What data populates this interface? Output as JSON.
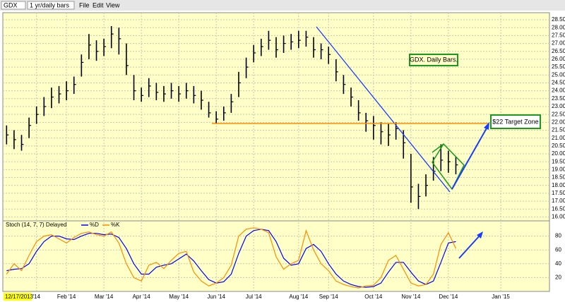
{
  "toolbar": {
    "symbol": "GDX",
    "period": "1 yr/daily bars",
    "menus": [
      "File",
      "Edit",
      "View"
    ]
  },
  "chart_data": [
    {
      "type": "hlc",
      "color": "#000000",
      "grid": true,
      "annotations": [
        "GDX. Daily Bars.",
        "$22 Target Zone"
      ],
      "ylim": [
        15.75,
        28.95
      ],
      "yticks": [
        {
          "value": 16,
          "label": "16.00"
        },
        {
          "value": 16.5,
          "label": "16.50"
        },
        {
          "value": 17,
          "label": "17.00"
        },
        {
          "value": 17.5,
          "label": "17.50"
        },
        {
          "value": 18,
          "label": "18.00"
        },
        {
          "value": 18.5,
          "label": "18.50"
        },
        {
          "value": 19,
          "label": "19.00"
        },
        {
          "value": 19.5,
          "label": "19.50"
        },
        {
          "value": 20,
          "label": "20.00"
        },
        {
          "value": 20.5,
          "label": "20.50"
        },
        {
          "value": 21,
          "label": "21.00"
        },
        {
          "value": 21.5,
          "label": "21.50"
        },
        {
          "value": 22,
          "label": "22.00"
        },
        {
          "value": 22.5,
          "label": "22.50"
        },
        {
          "value": 23,
          "label": "23.00"
        },
        {
          "value": 23.5,
          "label": "23.50"
        },
        {
          "value": 24,
          "label": "24.00"
        },
        {
          "value": 24.5,
          "label": "24.50"
        },
        {
          "value": 25,
          "label": "25.00"
        },
        {
          "value": 25.5,
          "label": "25.50"
        },
        {
          "value": 26,
          "label": "26.00"
        },
        {
          "value": 26.5,
          "label": "26.50"
        },
        {
          "value": 27,
          "label": "27.00"
        },
        {
          "value": 27.5,
          "label": "27.50"
        },
        {
          "value": 28,
          "label": "28.00"
        },
        {
          "value": 28.5,
          "label": "28.50"
        }
      ],
      "high": [
        21.8,
        21.5,
        21.2,
        22.3,
        23.0,
        23.6,
        24.2,
        24.3,
        24.6,
        24.9,
        26.3,
        27.6,
        27.2,
        27.3,
        28.1,
        28.0,
        27.0,
        25.0,
        24.2,
        24.8,
        24.5,
        24.3,
        24.5,
        24.3,
        24.5,
        24.3,
        24.0,
        23.3,
        22.7,
        23.0,
        23.8,
        25.2,
        26.1,
        26.9,
        27.3,
        27.8,
        27.4,
        27.5,
        27.6,
        27.8,
        27.8,
        27.4,
        27.0,
        26.8,
        26.0,
        25.0,
        24.2,
        23.4,
        22.6,
        22.4,
        22.0,
        21.9,
        22.0,
        21.5,
        20.0,
        18.1,
        18.7,
        19.8,
        20.6,
        20.2,
        19.8,
        null,
        null,
        null,
        null,
        null,
        null,
        null,
        null,
        null,
        null,
        null,
        null
      ],
      "low": [
        20.6,
        20.3,
        20.2,
        21.0,
        21.9,
        22.4,
        22.9,
        23.2,
        23.4,
        23.8,
        24.9,
        26.0,
        25.9,
        26.2,
        26.7,
        26.3,
        25.0,
        23.4,
        23.3,
        23.6,
        23.4,
        23.3,
        23.5,
        23.3,
        23.5,
        23.2,
        22.8,
        22.3,
        21.9,
        22.1,
        22.6,
        23.6,
        24.8,
        25.8,
        26.2,
        26.6,
        26.1,
        26.4,
        26.6,
        26.7,
        26.8,
        26.1,
        26.0,
        25.7,
        24.6,
        23.8,
        23.0,
        22.1,
        21.4,
        20.9,
        20.6,
        20.5,
        20.9,
        19.7,
        16.9,
        16.5,
        17.3,
        18.3,
        18.9,
        18.8,
        18.7,
        null,
        null,
        null,
        null,
        null,
        null,
        null,
        null,
        null,
        null,
        null,
        null
      ],
      "close": [
        21.2,
        20.9,
        20.6,
        21.8,
        22.5,
        23.0,
        23.6,
        23.8,
        24.0,
        24.4,
        25.8,
        26.9,
        26.5,
        26.8,
        27.6,
        27.3,
        25.6,
        24.0,
        23.7,
        24.3,
        23.9,
        23.8,
        24.0,
        23.8,
        24.0,
        23.7,
        23.4,
        22.6,
        22.2,
        22.6,
        23.3,
        24.5,
        25.5,
        26.4,
        26.8,
        27.2,
        26.6,
        27.0,
        27.1,
        27.2,
        27.4,
        26.6,
        26.6,
        26.3,
        25.2,
        24.4,
        23.6,
        22.6,
        22.1,
        21.8,
        21.4,
        21.2,
        21.6,
        20.7,
        17.9,
        17.3,
        18.0,
        18.9,
        19.6,
        19.5,
        19.3,
        null,
        null,
        null,
        null,
        null,
        null,
        null,
        null,
        null,
        null,
        null,
        null
      ]
    },
    {
      "type": "line",
      "title": "Stoch (14, 7, 7) Delayed",
      "grid": true,
      "ylim": [
        0,
        100
      ],
      "yticks": [
        20,
        40,
        60,
        80
      ],
      "cursor_index": 1,
      "categories": [
        null,
        "12/17/2013",
        null,
        null,
        "'14",
        null,
        null,
        null,
        "Feb '14",
        null,
        null,
        null,
        null,
        "Mar '14",
        null,
        null,
        null,
        null,
        "Apr '14",
        null,
        null,
        null,
        null,
        "May '14",
        null,
        null,
        null,
        null,
        "Jun '14",
        null,
        null,
        null,
        null,
        "Jul '14",
        null,
        null,
        null,
        null,
        null,
        "Aug '14",
        null,
        null,
        null,
        "Sep '14",
        null,
        null,
        null,
        null,
        null,
        "Oct '14",
        null,
        null,
        null,
        null,
        "Nov '14",
        null,
        null,
        null,
        null,
        "Dec '14",
        null,
        null,
        null,
        null,
        null,
        null,
        "Jan '15",
        null,
        null,
        null,
        null,
        null,
        null
      ],
      "series": [
        {
          "name": "%D",
          "color": "#0000ff",
          "values": [
            30,
            32,
            33,
            40,
            58,
            72,
            80,
            80,
            76,
            75,
            80,
            84,
            84,
            82,
            83,
            78,
            62,
            40,
            25,
            25,
            35,
            38,
            40,
            47,
            54,
            44,
            30,
            17,
            12,
            14,
            25,
            55,
            80,
            88,
            90,
            88,
            72,
            48,
            38,
            40,
            62,
            68,
            58,
            40,
            25,
            15,
            10,
            7,
            6,
            7,
            12,
            28,
            42,
            42,
            28,
            15,
            10,
            15,
            42,
            70,
            72,
            null,
            null,
            null,
            null,
            null,
            null,
            null,
            null,
            null,
            null,
            null,
            null
          ]
        },
        {
          "name": "%K",
          "color": "#ff8c00",
          "values": [
            25,
            40,
            30,
            52,
            72,
            80,
            82,
            76,
            70,
            78,
            84,
            86,
            82,
            80,
            86,
            70,
            40,
            20,
            15,
            38,
            42,
            33,
            45,
            55,
            58,
            28,
            15,
            8,
            12,
            20,
            38,
            80,
            90,
            92,
            90,
            85,
            50,
            32,
            40,
            45,
            88,
            60,
            40,
            30,
            15,
            10,
            7,
            5,
            8,
            9,
            20,
            45,
            52,
            32,
            12,
            8,
            10,
            25,
            68,
            85,
            62,
            null,
            null,
            null,
            null,
            null,
            null,
            null,
            null,
            null,
            null,
            null,
            null
          ]
        }
      ]
    }
  ]
}
